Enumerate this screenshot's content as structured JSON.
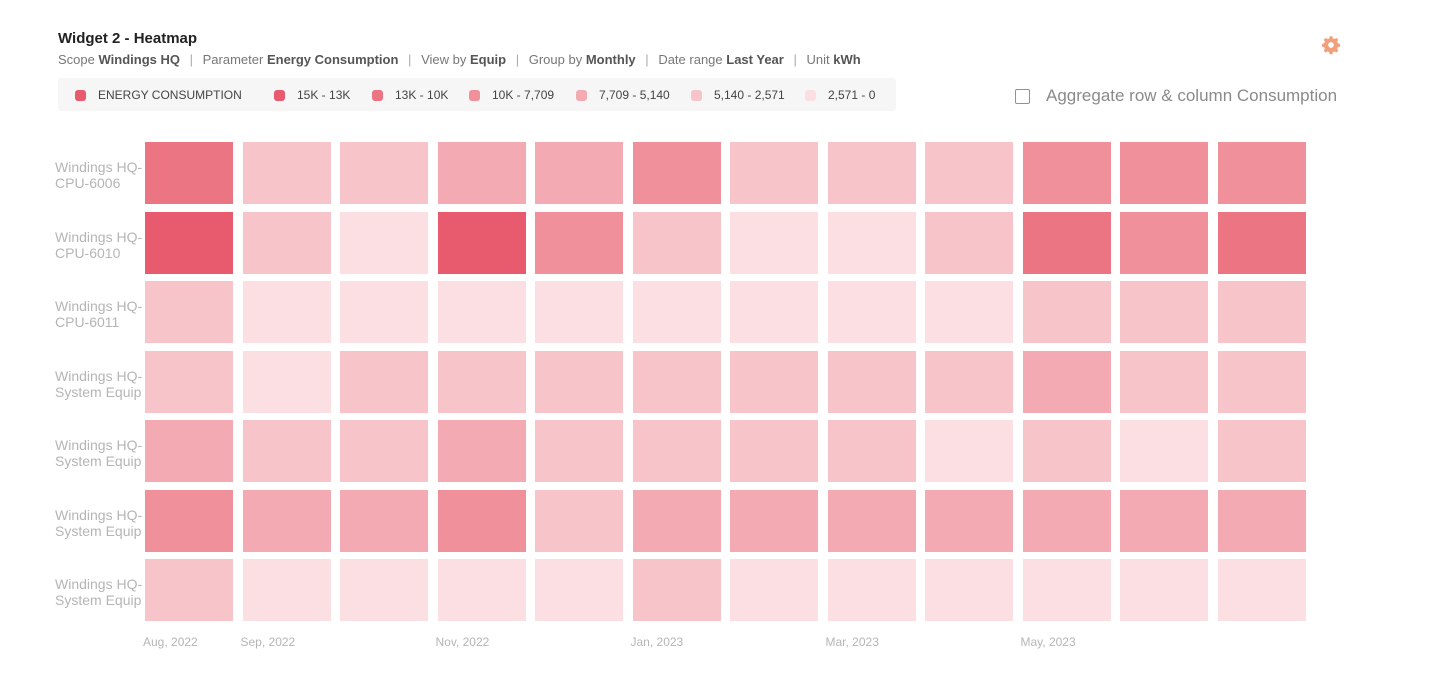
{
  "header": {
    "title": "Widget 2 - Heatmap",
    "scope_label": "Scope",
    "scope_value": "Windings HQ",
    "parameter_label": "Parameter",
    "parameter_value": "Energy Consumption",
    "viewby_label": "View by",
    "viewby_value": "Equip",
    "groupby_label": "Group by",
    "groupby_value": "Monthly",
    "daterange_label": "Date range",
    "daterange_value": "Last Year",
    "unit_label": "Unit",
    "unit_value": "kWh",
    "separator": "|",
    "settings_icon": "gear-icon",
    "settings_color": "#f0a07a"
  },
  "legend": {
    "series_label": "ENERGY CONSUMPTION",
    "series_color": "#e85a6e",
    "ranges": [
      {
        "label": "15K - 13K",
        "color": "#e85a6e"
      },
      {
        "label": "13K - 10K",
        "color": "#ec7584"
      },
      {
        "label": "10K - 7,709",
        "color": "#f0909b"
      },
      {
        "label": "7,709 - 5,140",
        "color": "#f3aab2"
      },
      {
        "label": "5,140 - 2,571",
        "color": "#f7c4ca"
      },
      {
        "label": "2,571 - 0",
        "color": "#fbdfe2"
      }
    ]
  },
  "aggregate": {
    "label": "Aggregate row & column Consumption",
    "checked": false,
    "checkbox_color": "#e07b39"
  },
  "chart_data": {
    "type": "heatmap",
    "rows": [
      "Windings HQ-CPU-6006",
      "Windings HQ-CPU-6010",
      "Windings HQ-CPU-6011",
      "Windings HQ-System Equip",
      "Windings HQ-System Equip",
      "Windings HQ-System Equip",
      "Windings HQ-System Equip"
    ],
    "x_tick_labels": [
      {
        "col": 0,
        "label": "Aug, 2022"
      },
      {
        "col": 1,
        "label": "Sep, 2022"
      },
      {
        "col": 3,
        "label": "Nov, 2022"
      },
      {
        "col": 5,
        "label": "Jan, 2023"
      },
      {
        "col": 7,
        "label": "Mar, 2023"
      },
      {
        "col": 9,
        "label": "May, 2023"
      }
    ],
    "column_count": 12,
    "bins": [
      {
        "min": 13000,
        "max": 15000
      },
      {
        "min": 10000,
        "max": 13000
      },
      {
        "min": 7709,
        "max": 10000
      },
      {
        "min": 5140,
        "max": 7709
      },
      {
        "min": 2571,
        "max": 5140
      },
      {
        "min": 0,
        "max": 2571
      }
    ],
    "value_bin_index": [
      [
        1,
        4,
        4,
        3,
        3,
        2,
        4,
        4,
        4,
        2,
        2,
        2
      ],
      [
        0,
        4,
        5,
        0,
        2,
        4,
        5,
        5,
        4,
        1,
        2,
        1
      ],
      [
        4,
        5,
        5,
        5,
        5,
        5,
        5,
        5,
        5,
        4,
        4,
        4
      ],
      [
        4,
        5,
        4,
        4,
        4,
        4,
        4,
        4,
        4,
        3,
        4,
        4
      ],
      [
        3,
        4,
        4,
        3,
        4,
        4,
        4,
        4,
        5,
        4,
        5,
        4
      ],
      [
        2,
        3,
        3,
        2,
        4,
        3,
        3,
        3,
        3,
        3,
        3,
        3
      ],
      [
        4,
        5,
        5,
        5,
        5,
        4,
        5,
        5,
        5,
        5,
        5,
        5
      ]
    ],
    "unit": "kWh",
    "legend_position": "top-left",
    "grid": false
  }
}
